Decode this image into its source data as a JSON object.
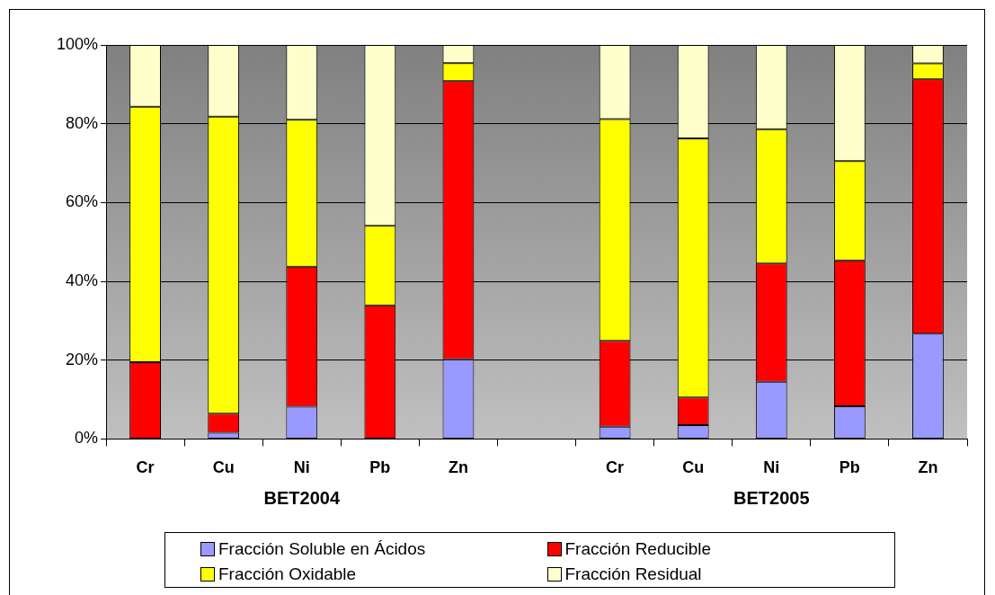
{
  "chart_data": {
    "type": "bar",
    "stacked": true,
    "categories": [
      "Cr",
      "Cu",
      "Ni",
      "Pb",
      "Zn",
      null,
      "Cr",
      "Cu",
      "Ni",
      "Pb",
      "Zn"
    ],
    "series": [
      {
        "name": "Fracción Soluble en Ácidos",
        "color": "#9999ff",
        "values": [
          0,
          1.6,
          8.2,
          0,
          20.2,
          null,
          3.1,
          3.5,
          14.5,
          8.3,
          26.7
        ]
      },
      {
        "name": "Fracción Reducible",
        "color": "#ff0000",
        "values": [
          19.5,
          4.8,
          35.5,
          33.9,
          70.6,
          null,
          21.8,
          7.0,
          30.0,
          37.0,
          64.6
        ]
      },
      {
        "name": "Fracción Oxidable",
        "color": "#ffff00",
        "values": [
          64.8,
          75.4,
          37.3,
          20.2,
          4.6,
          null,
          56.3,
          65.8,
          34.1,
          25.2,
          4.0
        ]
      },
      {
        "name": "Fracción Residual",
        "color": "#ffffcc",
        "values": [
          15.7,
          18.2,
          19.0,
          45.9,
          4.6,
          null,
          18.8,
          23.7,
          21.4,
          29.5,
          4.7
        ]
      }
    ],
    "ylim": [
      0,
      100
    ],
    "yticks": [
      {
        "value": 0,
        "label": "0%"
      },
      {
        "value": 20,
        "label": "20%"
      },
      {
        "value": 40,
        "label": "40%"
      },
      {
        "value": 60,
        "label": "60%"
      },
      {
        "value": 80,
        "label": "80%"
      },
      {
        "value": 100,
        "label": "100%"
      }
    ],
    "annotations": [
      "BET2004",
      "BET2005"
    ],
    "grid": "y",
    "legend": "bottom"
  }
}
